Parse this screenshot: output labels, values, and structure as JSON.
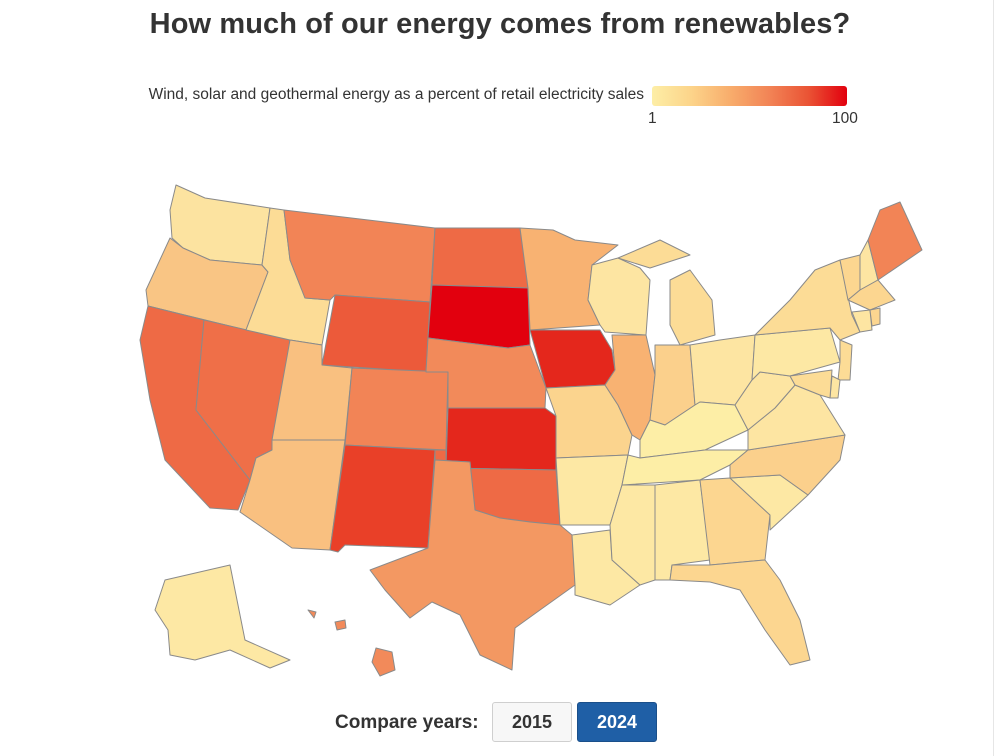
{
  "title": "How much of our energy comes from renewables?",
  "legend": {
    "label": "Wind, solar and geothermal energy as a percent of retail electricity sales",
    "min": "1",
    "max": "100",
    "colors": [
      "#fdeea6",
      "#fcd48a",
      "#f8ad6c",
      "#f28456",
      "#ea5435",
      "#e2000e"
    ]
  },
  "controls": {
    "label": "Compare years:",
    "years": [
      "2015",
      "2024"
    ],
    "selected": "2024"
  },
  "states": {
    "WA": "#fce3a0",
    "OR": "#f9c584",
    "CA": "#ee6a45",
    "NV": "#ef6f48",
    "ID": "#fcdc96",
    "MT": "#f28456",
    "WY": "#ec5a3a",
    "UT": "#f9c080",
    "AZ": "#f9c080",
    "CO": "#f28456",
    "NM": "#e94028",
    "ND": "#ee6a45",
    "SD": "#e2000e",
    "NE": "#f28a5a",
    "KS": "#e4271c",
    "OK": "#ee6a45",
    "TX": "#f39862",
    "MN": "#f8b272",
    "IA": "#e4271c",
    "MO": "#fbd48e",
    "AR": "#fde8a4",
    "LA": "#fde8a4",
    "WI": "#fde5a2",
    "IL": "#f8b272",
    "MI": "#fcdc96",
    "IN": "#fbd08c",
    "OH": "#fde5a2",
    "KY": "#fdeea6",
    "TN": "#fdeea6",
    "MS": "#fde8a4",
    "AL": "#fde8a4",
    "GA": "#fcd690",
    "FL": "#fcd690",
    "SC": "#fde8a4",
    "NC": "#fbd08c",
    "VA": "#fde5a2",
    "WV": "#fde5a2",
    "PA": "#fde8a4",
    "NY": "#fcdc96",
    "VT": "#fcd690",
    "NH": "#fde5a2",
    "ME": "#f28456",
    "MA": "#fcd690",
    "CT": "#fde5a2",
    "RI": "#fcd690",
    "NJ": "#fcdc96",
    "DE": "#fde5a2",
    "MD": "#fcdc96",
    "AK": "#fde8a4",
    "HI": "#f28a5a"
  }
}
